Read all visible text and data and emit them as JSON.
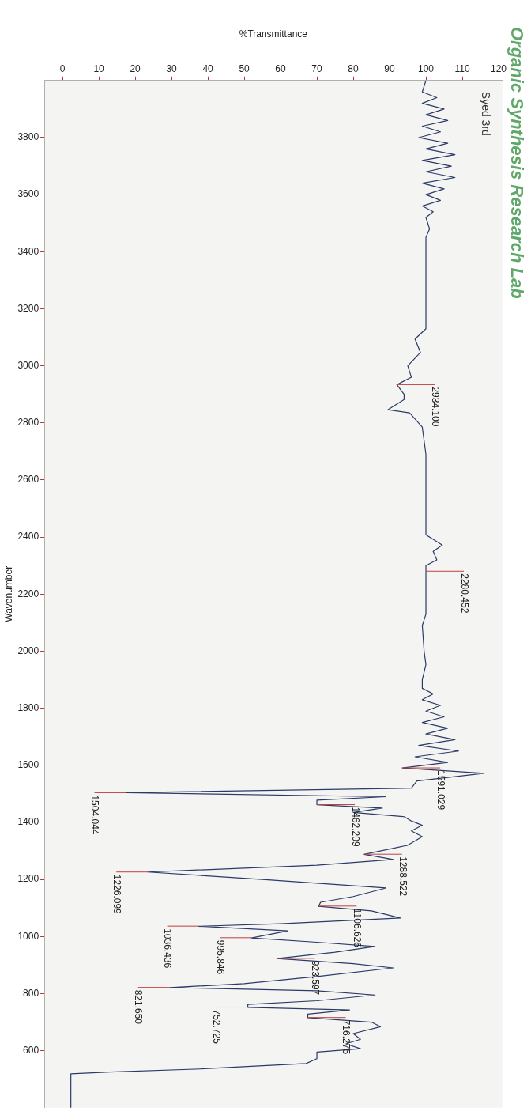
{
  "chart_data": {
    "type": "line",
    "orientation": "horizontal",
    "title": "Organic Synthesis Research Lab",
    "xlabel": "%Transmittance",
    "ylabel": "Wavenumber",
    "ylim": [
      400,
      4000
    ],
    "yticks": [
      3800,
      3600,
      3400,
      3200,
      3000,
      2800,
      2600,
      2400,
      2200,
      2000,
      1800,
      1600,
      1400,
      1200,
      1000,
      800,
      600
    ],
    "xlim": [
      -5,
      121
    ],
    "xticks": [
      0,
      10,
      20,
      30,
      40,
      50,
      60,
      70,
      80,
      90,
      100,
      110,
      120
    ],
    "grid": false,
    "legend": false,
    "series": [
      {
        "color": "#2b3a67",
        "x": [
          4000,
          3960,
          3940,
          3920,
          3900,
          3880,
          3860,
          3840,
          3820,
          3800,
          3780,
          3760,
          3740,
          3720,
          3700,
          3680,
          3660,
          3640,
          3620,
          3600,
          3580,
          3560,
          3540,
          3520,
          3480,
          3450,
          3130,
          3094,
          3047,
          3000,
          2960,
          2934,
          2900,
          2882,
          2846,
          2835,
          2785,
          2690,
          2408,
          2372,
          2350,
          2320,
          2300,
          2280,
          2130,
          2090,
          2000,
          1953,
          1900,
          1870,
          1850,
          1830,
          1810,
          1790,
          1770,
          1750,
          1730,
          1710,
          1690,
          1670,
          1650,
          1630,
          1610,
          1591,
          1572,
          1545,
          1520,
          1504,
          1490,
          1478,
          1462,
          1450,
          1435,
          1420,
          1405,
          1390,
          1370,
          1350,
          1320,
          1288,
          1270,
          1250,
          1226,
          1200,
          1170,
          1140,
          1120,
          1106,
          1090,
          1065,
          1045,
          1036,
          1020,
          995,
          980,
          965,
          945,
          923,
          905,
          890,
          860,
          835,
          821,
          810,
          795,
          775,
          762,
          752,
          743,
          728,
          716,
          700,
          684,
          660,
          640,
          624,
          607,
          595,
          572,
          555,
          536,
          525,
          519,
          400
        ],
        "values": [
          100,
          99,
          103,
          99,
          105,
          100,
          106,
          99,
          104,
          98,
          106,
          100,
          108,
          99,
          107,
          100,
          108,
          99,
          105,
          100,
          104,
          99,
          102,
          100,
          101,
          100,
          100,
          97,
          98.5,
          95,
          96,
          92,
          94,
          94,
          89.5,
          95.5,
          99,
          100,
          100,
          104.5,
          102,
          103,
          100,
          100,
          100,
          99,
          99.5,
          100,
          99,
          99,
          102,
          99,
          104,
          100,
          105,
          99,
          106,
          100,
          108,
          98,
          109,
          97,
          106,
          93.5,
          116,
          97.5,
          96,
          17.5,
          89,
          70,
          70,
          88,
          80,
          94,
          96,
          99,
          96,
          99,
          95,
          83,
          91,
          70,
          23.5,
          55,
          89,
          80,
          71,
          70.5,
          85,
          93,
          60,
          37.5,
          62,
          52,
          70,
          86,
          75,
          59,
          80,
          91,
          70,
          50,
          29.5,
          70,
          86,
          70,
          51,
          51,
          79,
          67.5,
          67.5,
          85,
          87.5,
          80,
          82,
          78,
          82,
          70,
          70,
          67,
          38,
          13,
          2.3,
          2.3
        ]
      }
    ],
    "annotations": [
      "Syed 3rd",
      {
        "text": "2934.100",
        "x": 92,
        "y": 2934.1
      },
      {
        "text": "2280.452",
        "x": 100,
        "y": 2280.452
      },
      {
        "text": "1591.029",
        "x": 93.5,
        "y": 1591.029
      },
      {
        "text": "1504.044",
        "x": 17.5,
        "y": 1504.044
      },
      {
        "text": "1462.209",
        "x": 70,
        "y": 1462.209
      },
      {
        "text": "1288.522",
        "x": 83,
        "y": 1288.522
      },
      {
        "text": "1226.099",
        "x": 23.5,
        "y": 1226.099
      },
      {
        "text": "1106.626",
        "x": 70.5,
        "y": 1106.626
      },
      {
        "text": "1036.436",
        "x": 37.5,
        "y": 1036.436
      },
      {
        "text": "995.846",
        "x": 52,
        "y": 995.846
      },
      {
        "text": "923.597",
        "x": 59,
        "y": 923.597
      },
      {
        "text": "821.650",
        "x": 29.5,
        "y": 821.65
      },
      {
        "text": "752.725",
        "x": 51,
        "y": 752.725
      },
      {
        "text": "716.275",
        "x": 67.5,
        "y": 716.275
      }
    ]
  }
}
